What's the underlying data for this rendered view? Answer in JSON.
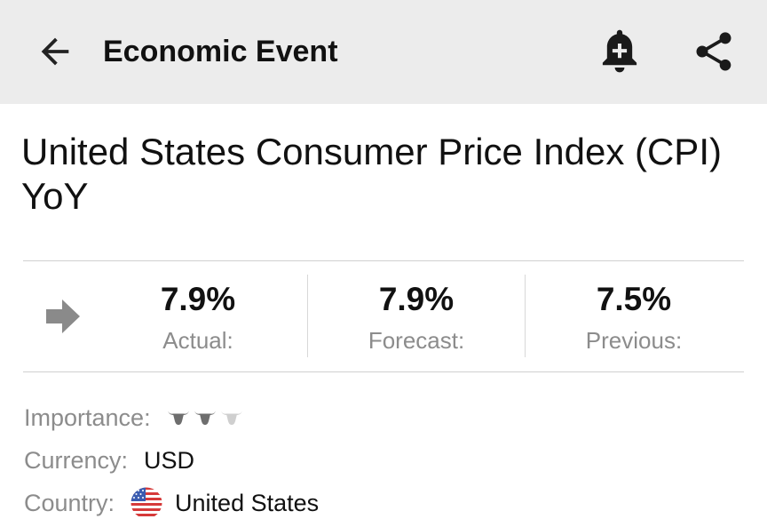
{
  "header": {
    "title": "Economic Event",
    "icons": {
      "back": "back-arrow-icon",
      "bell": "add-alert-bell-icon",
      "share": "share-icon"
    }
  },
  "event": {
    "title": "United States Consumer Price Index (CPI) YoY"
  },
  "stats": {
    "trend_icon": "right-arrow-icon",
    "actual": {
      "value": "7.9%",
      "label": "Actual:"
    },
    "forecast": {
      "value": "7.9%",
      "label": "Forecast:"
    },
    "previous": {
      "value": "7.5%",
      "label": "Previous:"
    }
  },
  "details": {
    "importance": {
      "label": "Importance:",
      "level": 2,
      "max": 3,
      "icon": "bull-icon"
    },
    "currency": {
      "label": "Currency:",
      "value": "USD"
    },
    "country": {
      "label": "Country:",
      "value": "United States",
      "flag_icon": "us-flag-icon"
    }
  },
  "colors": {
    "header_bg": "#ececec",
    "label_gray": "#8c8c8c",
    "divider": "#d0d0d0",
    "bull_active": "#6e6e6e",
    "bull_inactive": "#cfcfcf"
  }
}
